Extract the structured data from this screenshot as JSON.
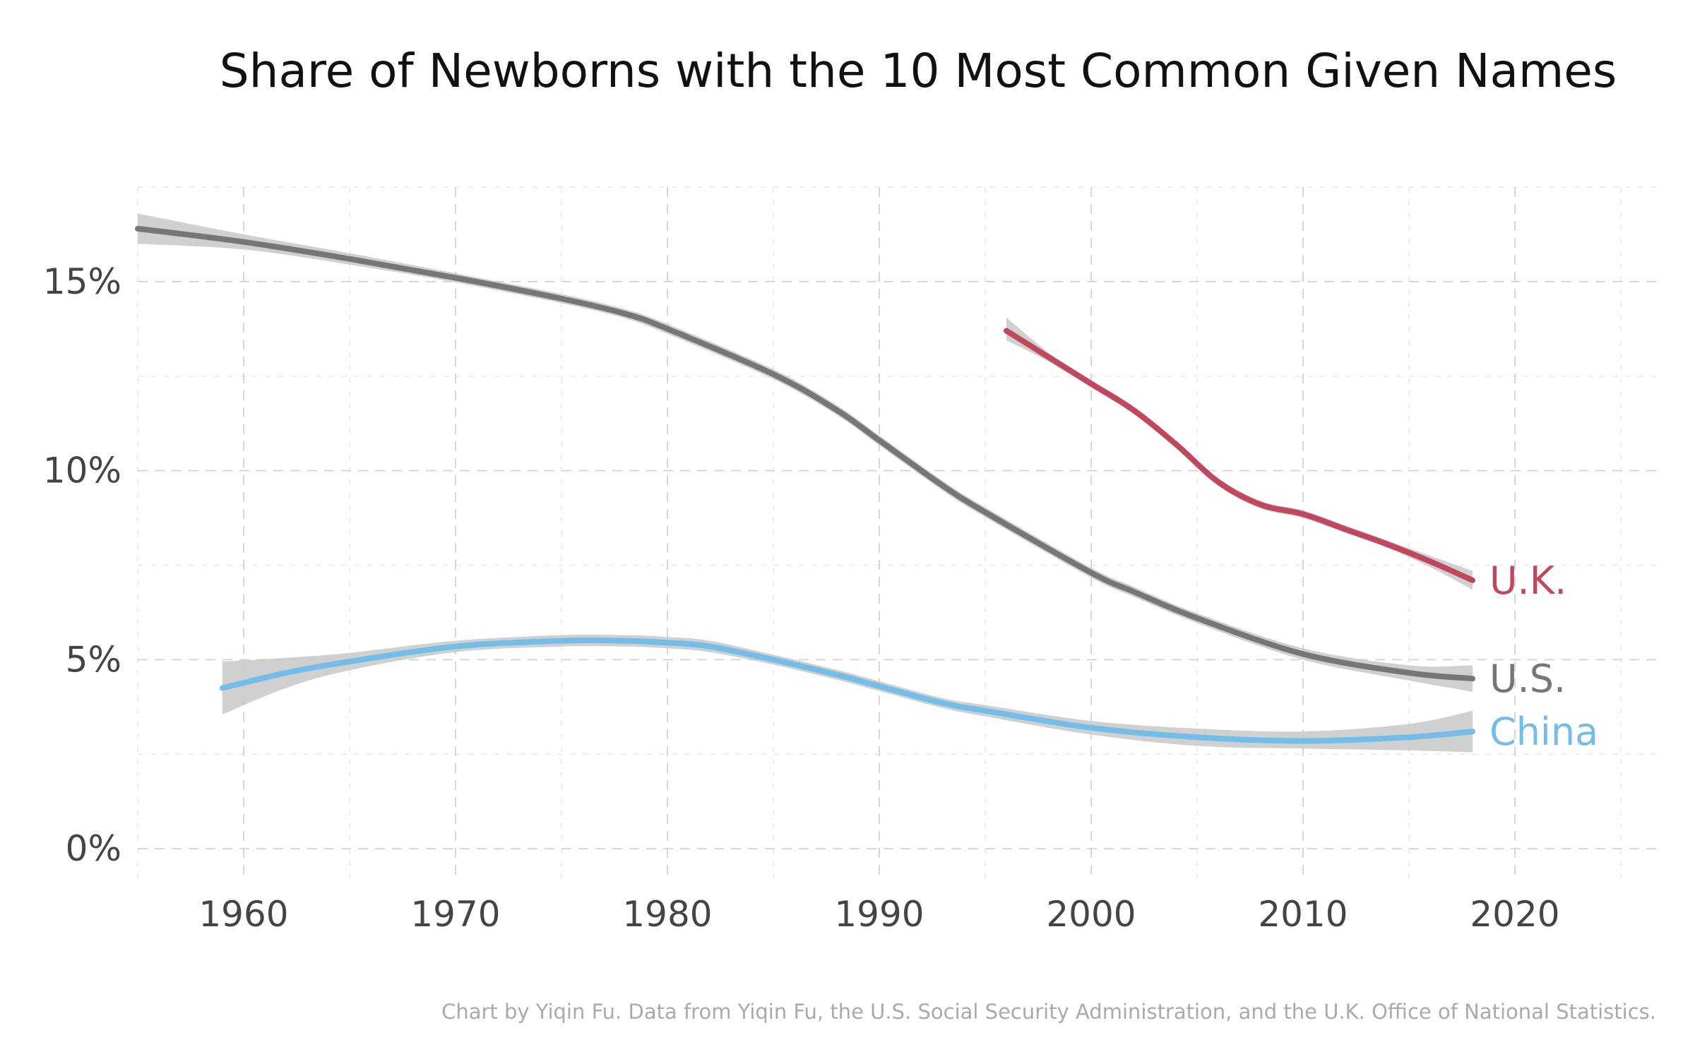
{
  "chart_data": {
    "type": "line",
    "title": "Share of Newborns with the 10 Most Common Given Names",
    "xlabel": "",
    "ylabel": "",
    "xlim": [
      1955,
      2027
    ],
    "ylim": [
      -0.8,
      17.5
    ],
    "x_ticks": [
      1960,
      1970,
      1980,
      1990,
      2000,
      2010,
      2020
    ],
    "x_tick_labels": [
      "1960",
      "1970",
      "1980",
      "1990",
      "2000",
      "2010",
      "2020"
    ],
    "x_minor_ticks": [
      1955,
      1965,
      1975,
      1985,
      1995,
      2005,
      2015,
      2025
    ],
    "y_ticks": [
      0,
      5,
      10,
      15
    ],
    "y_tick_labels": [
      "0%",
      "5%",
      "10%",
      "15%"
    ],
    "y_minor_ticks": [
      2.5,
      7.5,
      12.5,
      17.5
    ],
    "grid": true,
    "legend": "direct labels at right end of lines",
    "series": [
      {
        "name": "U.S.",
        "color": "#767676",
        "x": [
          1955,
          1960,
          1965,
          1970,
          1975,
          1978,
          1980,
          1985,
          1988,
          1990,
          1993,
          1995,
          2000,
          2002,
          2005,
          2010,
          2015,
          2018
        ],
        "y": [
          16.4,
          16.05,
          15.6,
          15.1,
          14.55,
          14.15,
          13.75,
          12.55,
          11.6,
          10.8,
          9.6,
          8.9,
          7.3,
          6.8,
          6.1,
          5.15,
          4.65,
          4.5
        ],
        "lower": [
          16.0,
          15.85,
          15.45,
          14.98,
          14.43,
          14.03,
          13.62,
          12.42,
          11.47,
          10.67,
          9.47,
          8.77,
          7.17,
          6.67,
          5.97,
          5.0,
          4.45,
          4.15
        ],
        "upper": [
          16.8,
          16.25,
          15.75,
          15.22,
          14.67,
          14.27,
          13.88,
          12.68,
          11.73,
          10.93,
          9.73,
          9.03,
          7.43,
          6.93,
          6.23,
          5.3,
          4.85,
          4.85
        ]
      },
      {
        "name": "U.K.",
        "color": "#c0485e",
        "x": [
          1996,
          1998,
          2000,
          2002,
          2004,
          2006,
          2008,
          2010,
          2012,
          2014,
          2016,
          2018
        ],
        "y": [
          13.7,
          13.0,
          12.3,
          11.6,
          10.7,
          9.7,
          9.1,
          8.85,
          8.45,
          8.05,
          7.6,
          7.1
        ],
        "lower": [
          13.45,
          12.88,
          12.2,
          11.5,
          10.6,
          9.6,
          9.0,
          8.75,
          8.35,
          7.95,
          7.45,
          6.85
        ],
        "upper": [
          14.05,
          13.12,
          12.4,
          11.7,
          10.8,
          9.8,
          9.2,
          8.95,
          8.55,
          8.15,
          7.75,
          7.35
        ]
      },
      {
        "name": "China",
        "color": "#74bde8",
        "x": [
          1959,
          1962,
          1965,
          1970,
          1975,
          1978,
          1980,
          1982,
          1985,
          1988,
          1990,
          1993,
          1995,
          2000,
          2005,
          2010,
          2015,
          2018
        ],
        "y": [
          4.25,
          4.65,
          4.95,
          5.35,
          5.5,
          5.5,
          5.45,
          5.35,
          5.0,
          4.6,
          4.3,
          3.85,
          3.65,
          3.2,
          2.95,
          2.85,
          2.95,
          3.1
        ],
        "lower": [
          3.55,
          4.25,
          4.72,
          5.2,
          5.35,
          5.35,
          5.3,
          5.2,
          4.87,
          4.47,
          4.17,
          3.72,
          3.5,
          3.02,
          2.72,
          2.65,
          2.6,
          2.55
        ],
        "upper": [
          4.95,
          5.05,
          5.18,
          5.5,
          5.65,
          5.65,
          5.6,
          5.5,
          5.13,
          4.73,
          4.43,
          3.98,
          3.8,
          3.38,
          3.18,
          3.1,
          3.3,
          3.65
        ]
      }
    ],
    "caption": "Chart by Yiqin Fu. Data from Yiqin Fu, the U.S. Social Security Administration, and the U.K. Office of National Statistics."
  }
}
